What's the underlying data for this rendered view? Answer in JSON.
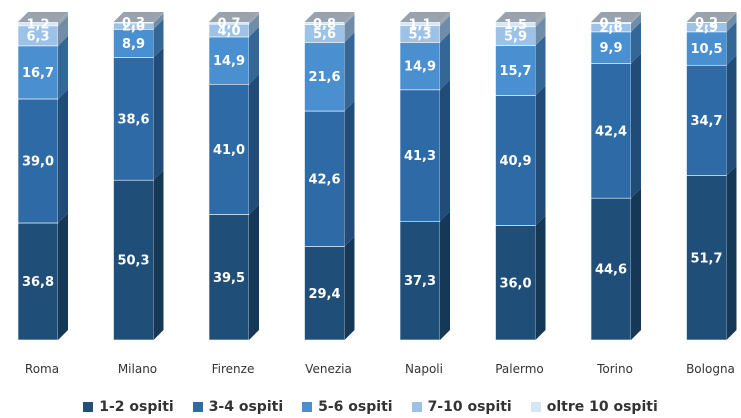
{
  "chart_data": {
    "type": "bar",
    "stacked": true,
    "percent": true,
    "style": "3d",
    "categories": [
      "Roma",
      "Milano",
      "Firenze",
      "Venezia",
      "Napoli",
      "Palermo",
      "Torino",
      "Bologna"
    ],
    "series": [
      {
        "name": "1-2 ospiti",
        "color": "#1f4e79",
        "values": [
          36.8,
          50.3,
          39.5,
          29.4,
          37.3,
          36.0,
          44.6,
          51.7
        ]
      },
      {
        "name": "3-4 ospiti",
        "color": "#2e6aa6",
        "values": [
          39.0,
          38.6,
          41.0,
          42.6,
          41.3,
          40.9,
          42.4,
          34.7
        ]
      },
      {
        "name": "5-6 ospiti",
        "color": "#4a8fd0",
        "values": [
          16.7,
          8.9,
          14.9,
          21.6,
          14.9,
          15.7,
          9.9,
          10.5
        ]
      },
      {
        "name": "7-10 ospiti",
        "color": "#9cc2e8",
        "values": [
          6.3,
          2.0,
          4.0,
          5.6,
          5.3,
          5.9,
          2.6,
          2.9
        ]
      },
      {
        "name": "oltre 10 ospiti",
        "color": "#d6e6f5",
        "values": [
          1.2,
          0.3,
          0.7,
          0.8,
          1.1,
          1.5,
          0.5,
          0.2
        ]
      }
    ],
    "value_labels": [
      [
        "36,8",
        "50,3",
        "39,5",
        "29,4",
        "37,3",
        "36,0",
        "44,6",
        "51,7"
      ],
      [
        "39,0",
        "38,6",
        "41,0",
        "42,6",
        "41,3",
        "40,9",
        "42,4",
        "34,7"
      ],
      [
        "16,7",
        "8,9",
        "14,9",
        "21,6",
        "14,9",
        "15,7",
        "9,9",
        "10,5"
      ],
      [
        "6,3",
        "2,0",
        "4,0",
        "5,6",
        "5,3",
        "5,9",
        "2,6",
        "2,9"
      ],
      [
        "1,2",
        "0,3",
        "0,7",
        "0,8",
        "1,1",
        "1,5",
        "0,5",
        "0,2"
      ]
    ],
    "ylim": [
      0,
      100
    ],
    "grid": false,
    "legend_position": "bottom"
  }
}
